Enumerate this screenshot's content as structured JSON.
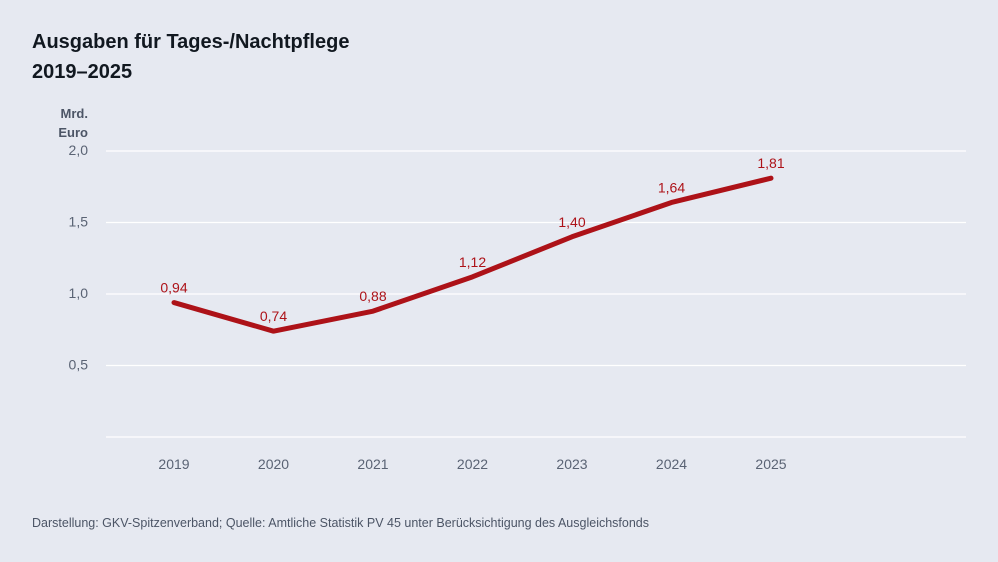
{
  "title_line1": "Ausgaben für Tages-/Nachtpflege",
  "title_line2": "2019–2025",
  "ylabel_line1": "Mrd.",
  "ylabel_line2": "Euro",
  "footer": "Darstellung: GKV-Spitzenverband; Quelle: Amtliche Statistik PV 45 unter Berücksichtigung des Ausgleichsfonds",
  "colors": {
    "line": "#ad1218",
    "grid": "#ffffff",
    "tick_text": "#5a6374"
  },
  "chart_data": {
    "type": "line",
    "x": [
      "2019",
      "2020",
      "2021",
      "2022",
      "2023",
      "2024",
      "2025"
    ],
    "series": [
      {
        "values": [
          0.94,
          0.74,
          0.88,
          1.12,
          1.4,
          1.64,
          1.81
        ],
        "labels": [
          "0,94",
          "0,74",
          "0,88",
          "1,12",
          "1,40",
          "1,64",
          "1,81"
        ]
      }
    ],
    "ylim": [
      0,
      2.0
    ],
    "yticks": [
      0.5,
      1.0,
      1.5,
      2.0
    ],
    "ytick_labels": [
      "0,5",
      "1,0",
      "1,5",
      "2,0"
    ],
    "grid": true,
    "legend": "none"
  }
}
